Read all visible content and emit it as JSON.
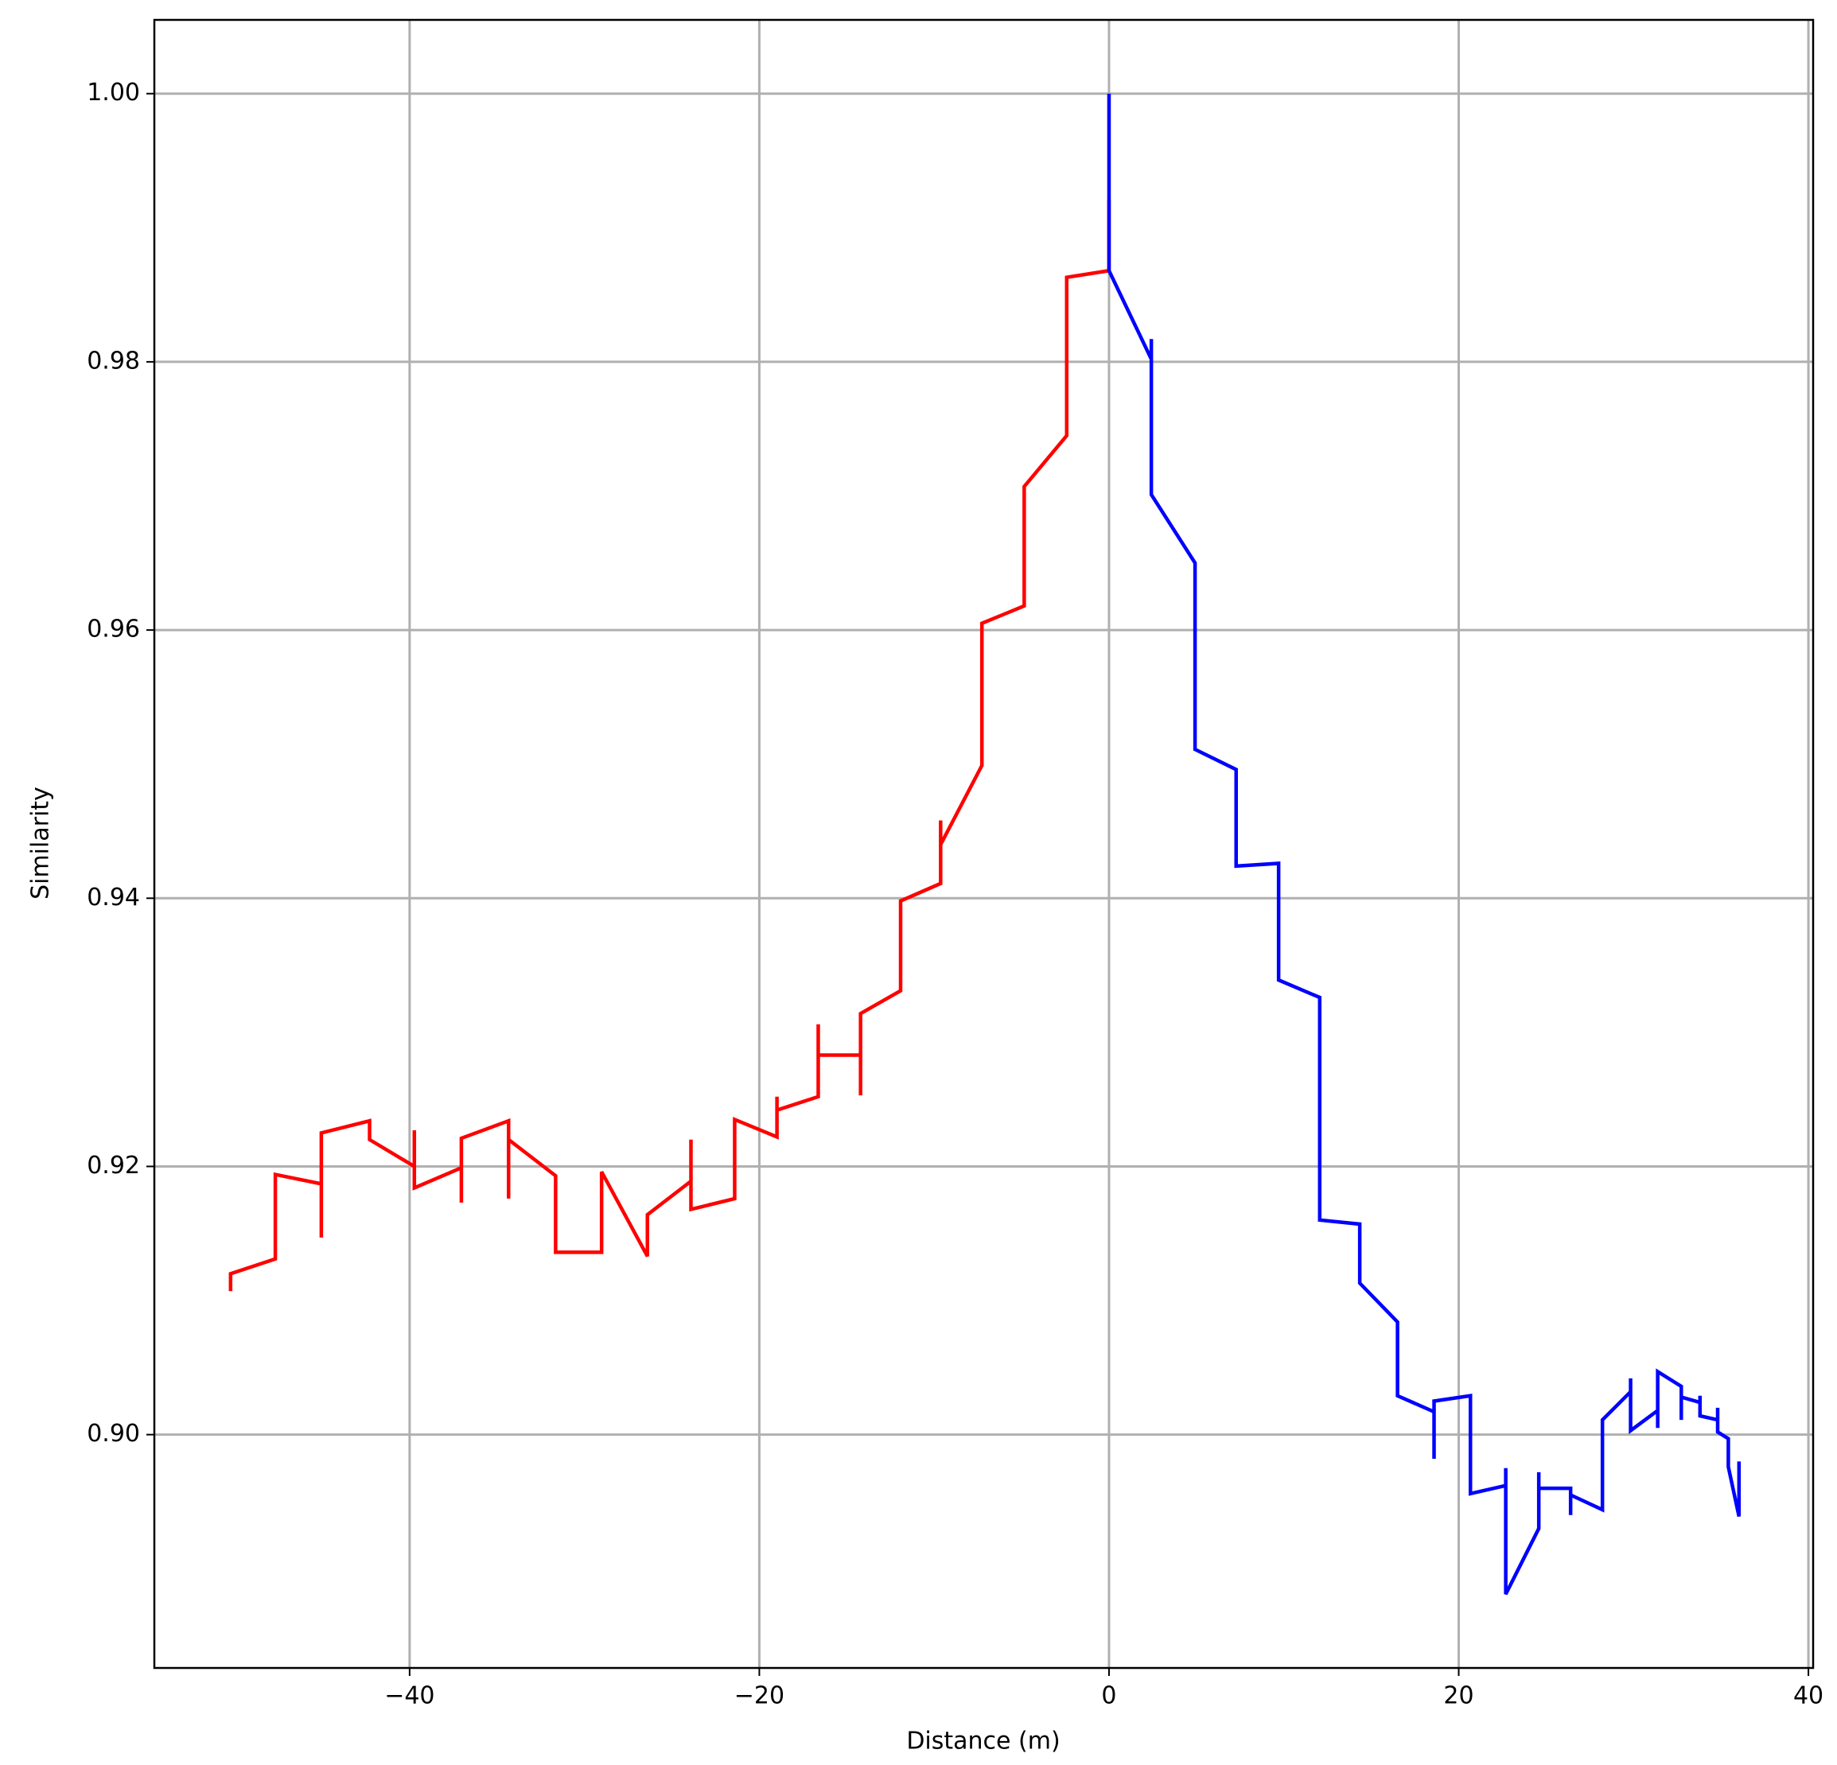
{
  "chart_data": {
    "type": "line",
    "xlabel": "Distance (m)",
    "ylabel": "Similarity",
    "xlim": [
      -54.6,
      40.27
    ],
    "ylim": [
      0.8826,
      1.0055
    ],
    "xticks": [
      {
        "value": -40,
        "label": "−40"
      },
      {
        "value": -20,
        "label": "−20"
      },
      0,
      20,
      40
    ],
    "yticks": [
      {
        "value": 0.9,
        "label": "0.90"
      },
      {
        "value": 0.92,
        "label": "0.92"
      },
      {
        "value": 0.94,
        "label": "0.94"
      },
      {
        "value": 0.96,
        "label": "0.96"
      },
      {
        "value": 0.98,
        "label": "0.98"
      },
      {
        "value": 1.0,
        "label": "1.00"
      }
    ],
    "grid": true,
    "series": [
      {
        "color": "#ff0000",
        "x": [
          0,
          0,
          -2.42,
          -2.42,
          -4.85,
          -4.85,
          -7.27,
          -7.27,
          -9.63,
          -9.63,
          -9.63,
          -11.92,
          -11.92,
          -14.21,
          -14.21,
          -14.21,
          -16.63,
          -16.63,
          -16.63,
          -18.99,
          -18.99,
          -18.99,
          -21.41,
          -21.41,
          -23.91,
          -23.91,
          -23.91,
          -26.4,
          -26.4,
          -29.02,
          -29.02,
          -31.65,
          -31.65,
          -34.34,
          -34.34,
          -34.34,
          -37.04,
          -37.04,
          -37.04,
          -39.73,
          -39.73,
          -39.73,
          -42.29,
          -42.29,
          -45.05,
          -45.05,
          -45.05,
          -47.68,
          -47.68,
          -50.24,
          -50.24
        ],
        "values": [
          0.9921,
          0.9868,
          0.9863,
          0.9745,
          0.9707,
          0.9618,
          0.9605,
          0.9499,
          0.944,
          0.9458,
          0.9411,
          0.9398,
          0.9331,
          0.9314,
          0.9253,
          0.9283,
          0.9283,
          0.9306,
          0.9252,
          0.9242,
          0.9252,
          0.9222,
          0.9235,
          0.9176,
          0.9168,
          0.922,
          0.9189,
          0.9164,
          0.9133,
          0.9196,
          0.9136,
          0.9136,
          0.9193,
          0.922,
          0.9176,
          0.9234,
          0.9221,
          0.9173,
          0.9199,
          0.9184,
          0.9227,
          0.92,
          0.922,
          0.9234,
          0.9225,
          0.9147,
          0.9187,
          0.9194,
          0.9131,
          0.912,
          0.9107
        ]
      },
      {
        "color": "#0000ff",
        "x": [
          0,
          0,
          0,
          2.42,
          2.42,
          2.42,
          4.92,
          4.92,
          7.27,
          7.27,
          9.7,
          9.7,
          12.05,
          12.05,
          14.34,
          14.34,
          16.5,
          16.5,
          18.59,
          18.59,
          18.59,
          20.67,
          20.67,
          22.69,
          22.69,
          22.69,
          24.58,
          24.58,
          24.58,
          26.4,
          26.4,
          26.4,
          28.22,
          28.22,
          29.83,
          29.83,
          29.83,
          31.38,
          31.38,
          31.38,
          32.73,
          32.73,
          32.73,
          33.8,
          33.8,
          33.8,
          34.81,
          34.81,
          34.81,
          35.42,
          35.42,
          36.03,
          36.03
        ],
        "values": [
          1.0,
          0.9921,
          0.9868,
          0.9802,
          0.9817,
          0.9701,
          0.965,
          0.9511,
          0.9496,
          0.9424,
          0.9426,
          0.9339,
          0.9326,
          0.916,
          0.9157,
          0.9113,
          0.9084,
          0.9029,
          0.9017,
          0.8982,
          0.9025,
          0.9029,
          0.8956,
          0.8962,
          0.8975,
          0.8881,
          0.893,
          0.8972,
          0.896,
          0.896,
          0.894,
          0.8955,
          0.8944,
          0.9011,
          0.9032,
          0.9042,
          0.9003,
          0.9018,
          0.9005,
          0.9047,
          0.9036,
          0.9011,
          0.9028,
          0.9024,
          0.9029,
          0.9014,
          0.9011,
          0.902,
          0.9002,
          0.8997,
          0.8976,
          0.8939,
          0.898
        ]
      }
    ]
  }
}
